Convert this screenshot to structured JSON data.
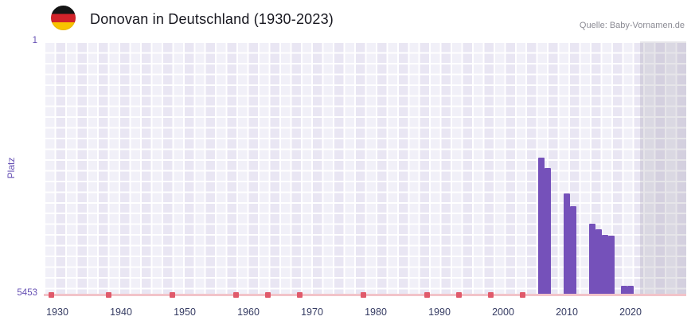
{
  "header": {
    "icons": {
      "flag": "german-flag-icon"
    }
  },
  "chart_data": {
    "type": "bar",
    "title": "Donovan in Deutschland (1930-2023)",
    "source": "Quelle: Baby-Vornamen.de",
    "ylabel": "Platz",
    "y_axis_top_label": "1",
    "y_axis_bottom_label": "5453",
    "ylim": [
      1,
      5453
    ],
    "y_inverted": true,
    "x_ticks": [
      "1930",
      "1940",
      "1950",
      "1960",
      "1970",
      "1980",
      "1990",
      "2000",
      "2010",
      "2020"
    ],
    "points": [
      {
        "year": 2006,
        "rank": 2500
      },
      {
        "year": 2007,
        "rank": 2730
      },
      {
        "year": 2010,
        "rank": 3280
      },
      {
        "year": 2011,
        "rank": 3550
      },
      {
        "year": 2014,
        "rank": 3930
      },
      {
        "year": 2015,
        "rank": 4050
      },
      {
        "year": 2016,
        "rank": 4170
      },
      {
        "year": 2017,
        "rank": 4180
      },
      {
        "year": 2019,
        "rank": 5260
      },
      {
        "year": 2020,
        "rank": 5260
      }
    ],
    "no_data_marker_years": [
      1929,
      1938,
      1948,
      1958,
      1963,
      1968,
      1978,
      1988,
      1993,
      1998,
      2003
    ],
    "shaded_region_from_year": 2022,
    "legend": "none",
    "grid": "on",
    "colors": {
      "bar": "#7551ba",
      "axis_line": "#f2c3c9",
      "no_data_marker": "#e05a6b",
      "plot_bg": "#e9e6f3",
      "shaded_band": "#d9d7e2",
      "axis_text_purple": "#6650b4",
      "tick_text": "#363c63"
    }
  }
}
